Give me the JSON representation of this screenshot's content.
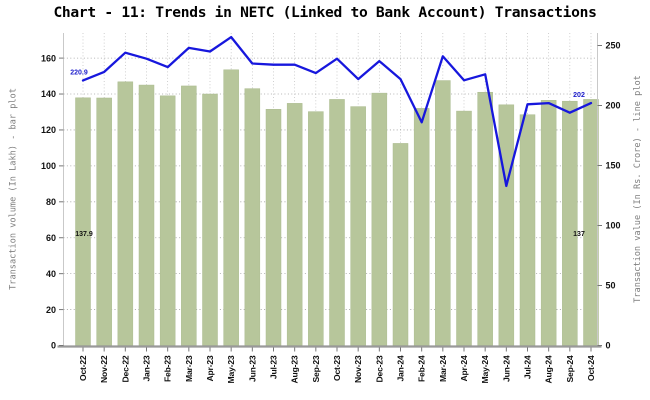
{
  "title": "Chart - 11: Trends in NETC (Linked to Bank Account) Transactions",
  "chart_data": {
    "type": "bar+line",
    "title": "Chart - 11: Trends in NETC (Linked to Bank Account) Transactions",
    "categories": [
      "Oct-22",
      "Nov-22",
      "Dec-22",
      "Jan-23",
      "Feb-23",
      "Mar-23",
      "Apr-23",
      "May-23",
      "Jun-23",
      "Jul-23",
      "Aug-23",
      "Sep-23",
      "Oct-23",
      "Nov-23",
      "Dec-23",
      "Jan-24",
      "Feb-24",
      "Mar-24",
      "Apr-24",
      "May-24",
      "Jun-24",
      "Jul-24",
      "Aug-24",
      "Sep-24",
      "Oct-24"
    ],
    "series": [
      {
        "name": "Transaction volume",
        "type": "bar",
        "axis": "left",
        "unit": "In Lakh",
        "values": [
          137.9,
          137.8,
          146.8,
          145.0,
          139.0,
          144.5,
          140.0,
          153.5,
          143.0,
          131.5,
          134.8,
          130.2,
          137.0,
          133.0,
          140.5,
          112.5,
          132.0,
          147.5,
          130.5,
          141.0,
          134.0,
          128.5,
          136.5,
          136.0,
          137.0
        ]
      },
      {
        "name": "Transaction value",
        "type": "line",
        "axis": "right",
        "unit": "In Rs. Crore",
        "values": [
          220.9,
          228,
          244,
          239,
          232,
          248,
          245,
          257,
          235,
          234,
          234,
          227,
          239,
          222,
          237,
          222,
          186,
          241,
          221,
          226,
          133,
          201,
          202,
          194,
          202
        ]
      }
    ],
    "left_axis": {
      "label": "Transaction volume (In Lakh) - bar plot",
      "ticks": [
        0,
        20,
        40,
        60,
        80,
        100,
        120,
        140,
        160
      ],
      "range": [
        0,
        174
      ]
    },
    "right_axis": {
      "label": "Transaction value (In Rs. Crore) - line plot",
      "ticks": [
        0,
        50,
        100,
        150,
        200,
        250
      ],
      "range": [
        0,
        260
      ]
    },
    "annotations": [
      {
        "text": "220.9",
        "series": "line",
        "index": 0,
        "color": "#2020cc"
      },
      {
        "text": "202",
        "series": "line",
        "index": 24,
        "color": "#2020cc"
      },
      {
        "text": "137.9",
        "series": "bar",
        "index": 0,
        "color": "#111111"
      },
      {
        "text": "137",
        "series": "bar",
        "index": 24,
        "color": "#111111"
      }
    ],
    "legend": "none",
    "grid": {
      "horizontal": "dotted at left-axis ticks",
      "vertical": "dotted at each month"
    },
    "colors": {
      "bar_fill": "#b7c69b",
      "bar_edge": "#abbb8f",
      "line": "#1717dd",
      "grid_h": "#9f9f9f",
      "grid_v": "#bcbcbc",
      "tick_label": "#111111",
      "axis_title": "#808080",
      "spine_bottom": "#999999",
      "spine_side": "#c9c9c9",
      "tick_mark": "#777777"
    }
  }
}
